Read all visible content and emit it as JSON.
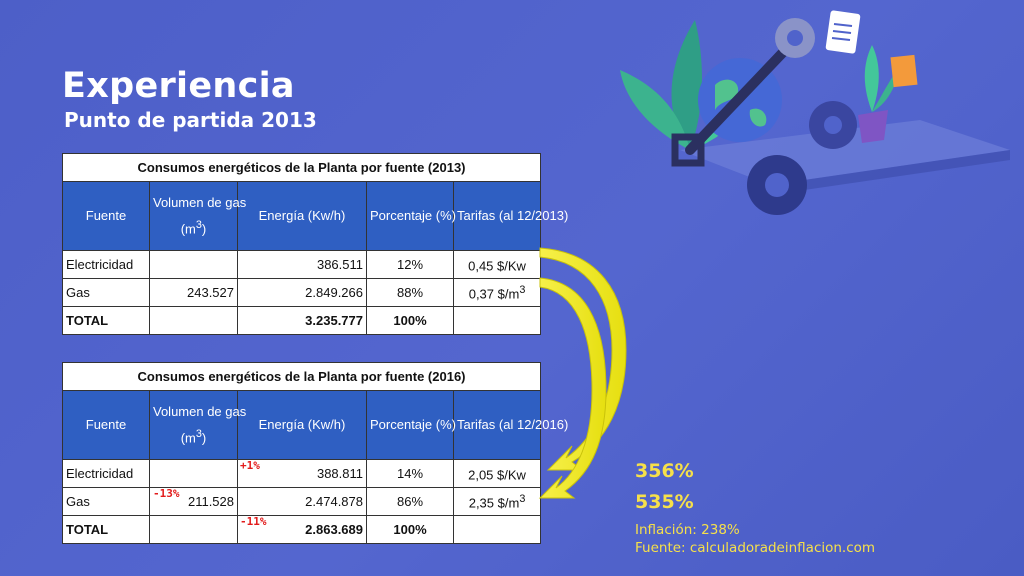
{
  "slide": {
    "title": "Experiencia",
    "subtitle": "Punto de partida 2013"
  },
  "table_2013": {
    "caption": "Consumos energéticos de la Planta por fuente (2013)",
    "headers": [
      "Fuente",
      "Volumen de gas",
      "(m",
      "3",
      ")",
      "Energía (Kw/h)",
      "Porcentaje (%)",
      "Tarifas (al 12/2013)"
    ],
    "rows": [
      {
        "fuente": "Electricidad",
        "volumen": "",
        "energia": "386.511",
        "porcentaje": "12%",
        "tarifa": "0,45 $/Kw",
        "tarifa_sup": ""
      },
      {
        "fuente": "Gas",
        "volumen": "243.527",
        "energia": "2.849.266",
        "porcentaje": "88%",
        "tarifa": "0,37 $/m",
        "tarifa_sup": "3"
      },
      {
        "fuente": "TOTAL",
        "volumen": "",
        "energia": "3.235.777",
        "porcentaje": "100%",
        "tarifa": "",
        "tarifa_sup": ""
      }
    ]
  },
  "table_2016": {
    "caption": "Consumos energéticos de la Planta por fuente (2016)",
    "headers": [
      "Fuente",
      "Volumen de gas",
      "(m",
      "3",
      ")",
      "Energía (Kw/h)",
      "Porcentaje (%)",
      "Tarifas (al 12/2016)"
    ],
    "rows": [
      {
        "fuente": "Electricidad",
        "volumen": "",
        "energia": "388.811",
        "porcentaje": "14%",
        "tarifa": "2,05 $/Kw",
        "tarifa_sup": ""
      },
      {
        "fuente": "Gas",
        "volumen": "211.528",
        "energia": "2.474.878",
        "porcentaje": "86%",
        "tarifa": "2,35 $/m",
        "tarifa_sup": "3"
      },
      {
        "fuente": "TOTAL",
        "volumen": "",
        "energia": "2.863.689",
        "porcentaje": "100%",
        "tarifa": "",
        "tarifa_sup": ""
      }
    ]
  },
  "deltas": {
    "electricidad_energia": "+1%",
    "gas_volumen": "-13%",
    "total_energia": "-11%"
  },
  "stats": {
    "electricidad_tarifa_aumento": "356%",
    "gas_tarifa_aumento": "535%",
    "inflacion": "Inflación: 238%",
    "fuente": "Fuente: calculadoradeinflacion.com"
  },
  "colors": {
    "background": "#5063cb",
    "table_header": "#2f5fc2",
    "arrow": "#f2ec1c",
    "highlight_text": "#f6e04a",
    "delta_text": "#e21b1b"
  },
  "icons": [
    "curved-arrow-icon",
    "wrench-icon",
    "gear-icon",
    "plant-icon",
    "document-icon",
    "globe-icon"
  ]
}
